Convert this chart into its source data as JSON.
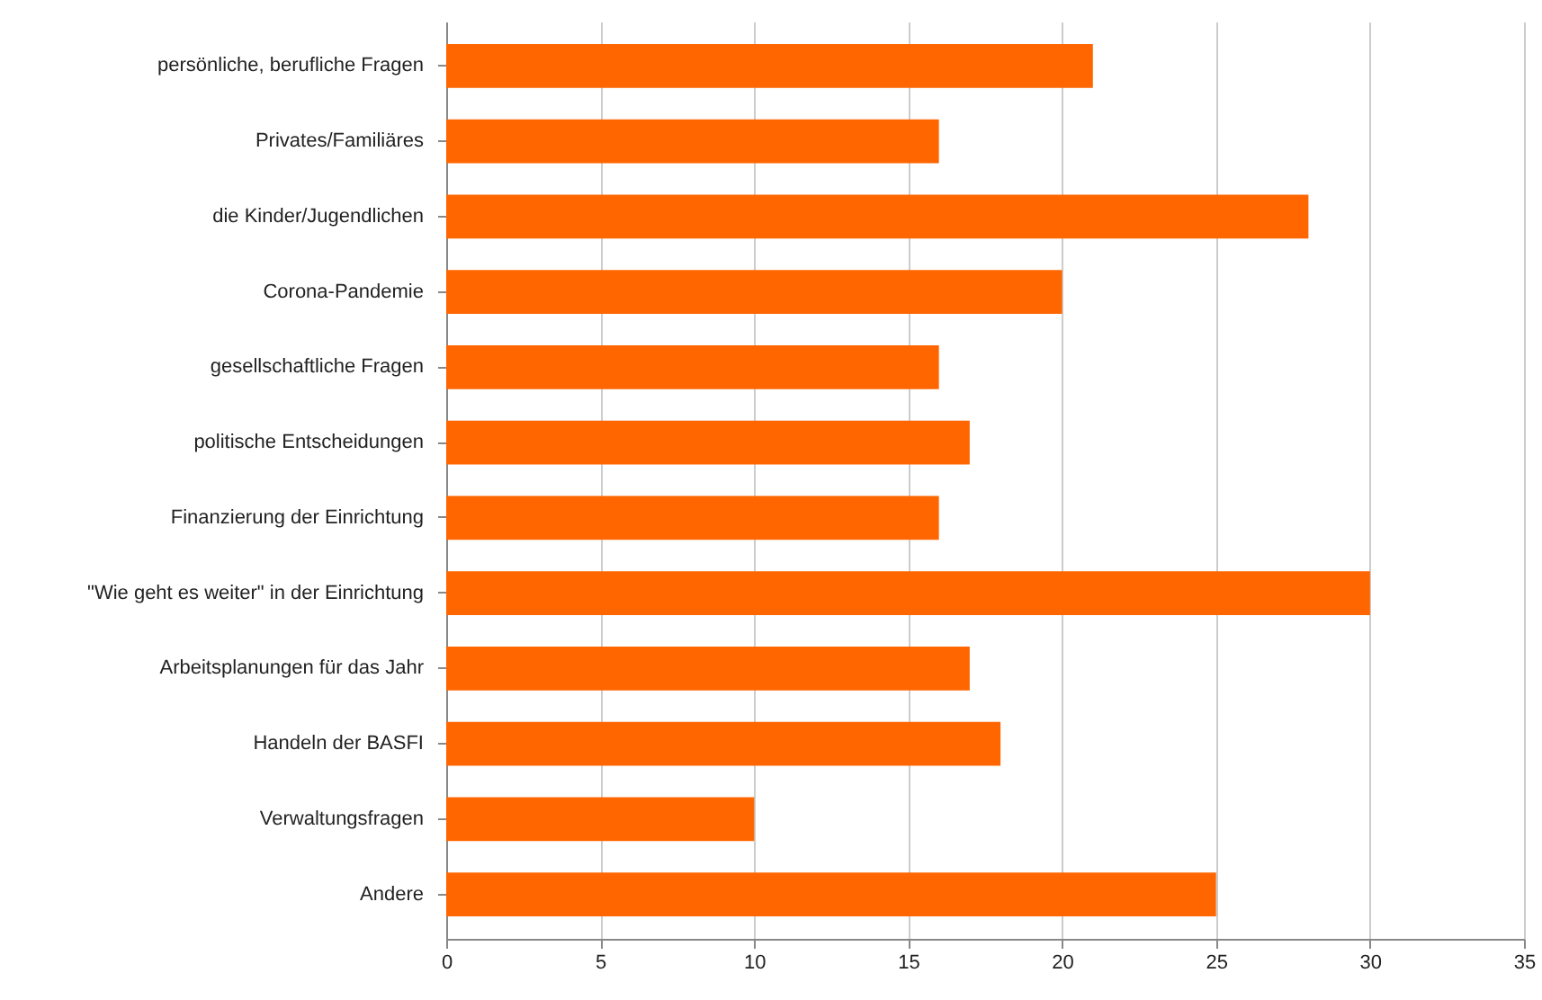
{
  "chart_data": {
    "type": "bar",
    "orientation": "horizontal",
    "categories": [
      "persönliche, berufliche Fragen",
      "Privates/Familiäres",
      "die Kinder/Jugendlichen",
      "Corona-Pandemie",
      "gesellschaftliche Fragen",
      "politische Entscheidungen",
      "Finanzierung der Einrichtung",
      "\"Wie geht es weiter\" in der Einrichtung",
      "Arbeitsplanungen für das Jahr",
      "Handeln der BASFI",
      "Verwaltungsfragen",
      "Andere"
    ],
    "values": [
      21,
      16,
      28,
      20,
      16,
      17,
      16,
      30,
      17,
      18,
      10,
      25
    ],
    "color": "#ff6600",
    "xlim": [
      0,
      35
    ],
    "xticks": [
      0,
      5,
      10,
      15,
      20,
      25,
      30,
      35
    ],
    "grid": "x"
  }
}
